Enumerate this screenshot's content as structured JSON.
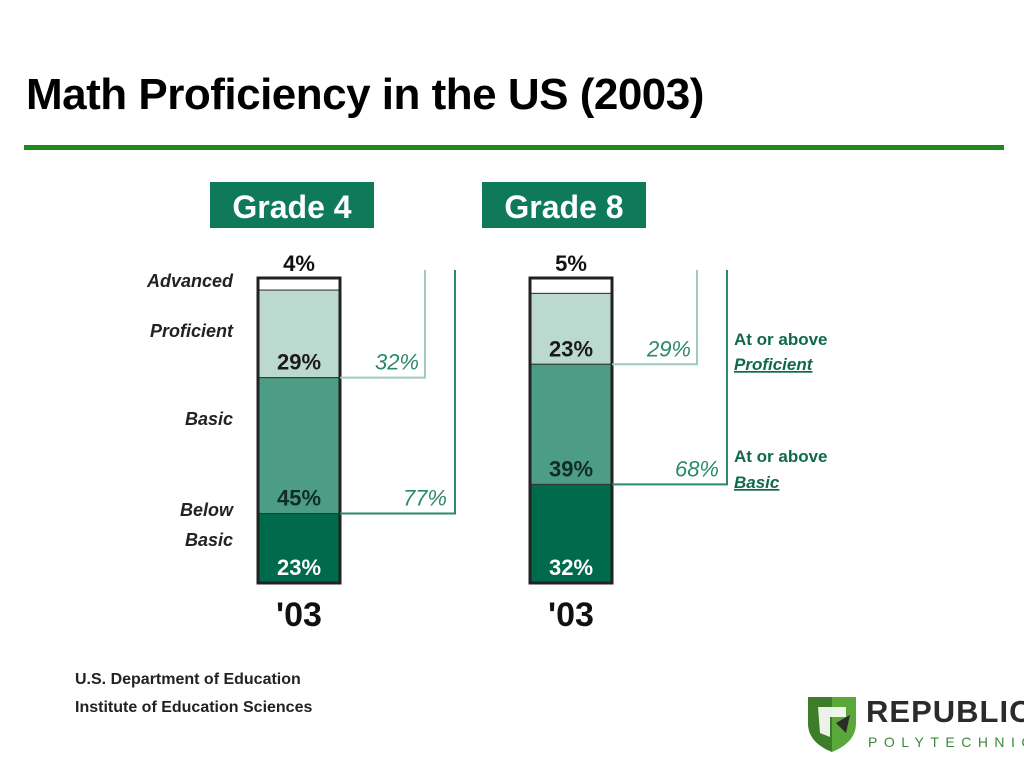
{
  "title": "Math Proficiency in the US (2003)",
  "colors": {
    "title_rule": "#1e8a1e",
    "advanced": "#ffffff",
    "proficient": "#bcd9d0",
    "basic": "#4d9c86",
    "below_basic": "#006b4c",
    "panel_title_bg": "#0f7a5a",
    "bracket_proficient": "#9fcabc",
    "bracket_basic": "#2a8a6a"
  },
  "chart_data": {
    "type": "bar",
    "stacked": true,
    "categories": [
      "Advanced",
      "Proficient",
      "Basic",
      "Below Basic"
    ],
    "category_labels": [
      {
        "key": "advanced",
        "lines": [
          "Advanced"
        ]
      },
      {
        "key": "proficient",
        "lines": [
          "Proficient"
        ]
      },
      {
        "key": "basic",
        "lines": [
          "Basic"
        ]
      },
      {
        "key": "below_basic",
        "lines": [
          "Below",
          "Basic"
        ]
      }
    ],
    "panels": [
      {
        "title": "Grade 4",
        "year_label": "'03",
        "segments": [
          {
            "level": "Advanced",
            "value": 4,
            "label": "4%"
          },
          {
            "level": "Proficient",
            "value": 29,
            "label": "29%"
          },
          {
            "level": "Basic",
            "value": 45,
            "label": "45%"
          },
          {
            "level": "Below Basic",
            "value": 23,
            "label": "23%"
          }
        ],
        "at_or_above_proficient": {
          "value": 32,
          "label": "32%"
        },
        "at_or_above_basic": {
          "value": 77,
          "label": "77%"
        }
      },
      {
        "title": "Grade 8",
        "year_label": "'03",
        "segments": [
          {
            "level": "Advanced",
            "value": 5,
            "label": "5%"
          },
          {
            "level": "Proficient",
            "value": 23,
            "label": "23%"
          },
          {
            "level": "Basic",
            "value": 39,
            "label": "39%"
          },
          {
            "level": "Below Basic",
            "value": 32,
            "label": "32%"
          }
        ],
        "at_or_above_proficient": {
          "value": 29,
          "label": "29%"
        },
        "at_or_above_basic": {
          "value": 68,
          "label": "68%"
        }
      }
    ],
    "annotations": [
      {
        "lines": [
          "At or above",
          "Proficient"
        ]
      },
      {
        "lines": [
          "At or above",
          "Basic"
        ]
      }
    ]
  },
  "credit": {
    "line1": "U.S. Department of Education",
    "line2": "Institute of Education Sciences"
  },
  "logo": {
    "name": "REPUBLIC",
    "subtitle": "POLYTECHNIC"
  }
}
